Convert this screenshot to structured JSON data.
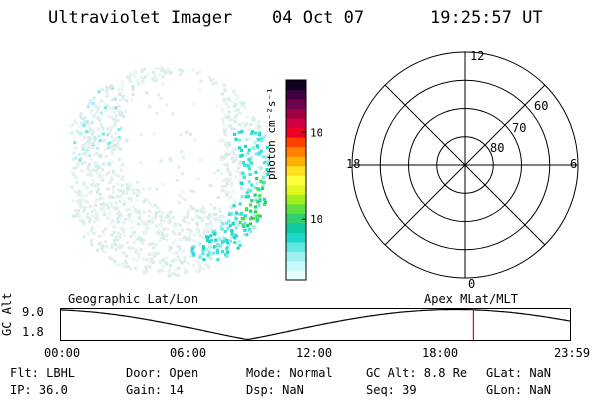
{
  "header": {
    "instrument": "Ultraviolet Imager",
    "date": "04 Oct 07",
    "time": "19:25:57 UT"
  },
  "colorbar": {
    "label": "photon cm⁻²s⁻¹",
    "ticks": [
      "100",
      "10"
    ],
    "tick_values": [
      100,
      10
    ],
    "range": [
      2,
      400
    ],
    "colors": [
      "#e8ffff",
      "#c8f8f8",
      "#a0f0f0",
      "#60e8e0",
      "#20d8c8",
      "#10c8a0",
      "#30d070",
      "#60e040",
      "#a0f020",
      "#e0f820",
      "#ffff40",
      "#ffe020",
      "#ffb000",
      "#ff8000",
      "#ff4000",
      "#f00020",
      "#d00040",
      "#a00040",
      "#700050",
      "#400040",
      "#100020"
    ]
  },
  "polar": {
    "labels": [
      "12",
      "6",
      "0",
      "18",
      "60",
      "70",
      "80"
    ],
    "colatitude_rings_deg": [
      10,
      20,
      30,
      40
    ]
  },
  "timeline": {
    "left_label": "Geographic Lat/Lon",
    "right_label": "Apex  MLat/MLT",
    "axis_title": "GC Alt",
    "y_top": "9.0",
    "y_bottom": "1.8",
    "y_range": [
      1.8,
      9.0
    ],
    "x_ticks": [
      "00:00",
      "06:00",
      "12:00",
      "18:00",
      "23:59"
    ],
    "current_time_hours": 19.43,
    "marker_color": "#ff0000"
  },
  "status": {
    "flt": "Flt: LBHL",
    "ip": "IP: 36.0",
    "door": "Door: Open",
    "gain": "Gain: 14",
    "mode": "Mode: Normal",
    "dsp": "Dsp:    NaN",
    "gcalt": "GC Alt: 8.8 Re",
    "seq": "Seq: 39",
    "glat": "GLat:    NaN",
    "glon": "GLon:    NaN"
  }
}
